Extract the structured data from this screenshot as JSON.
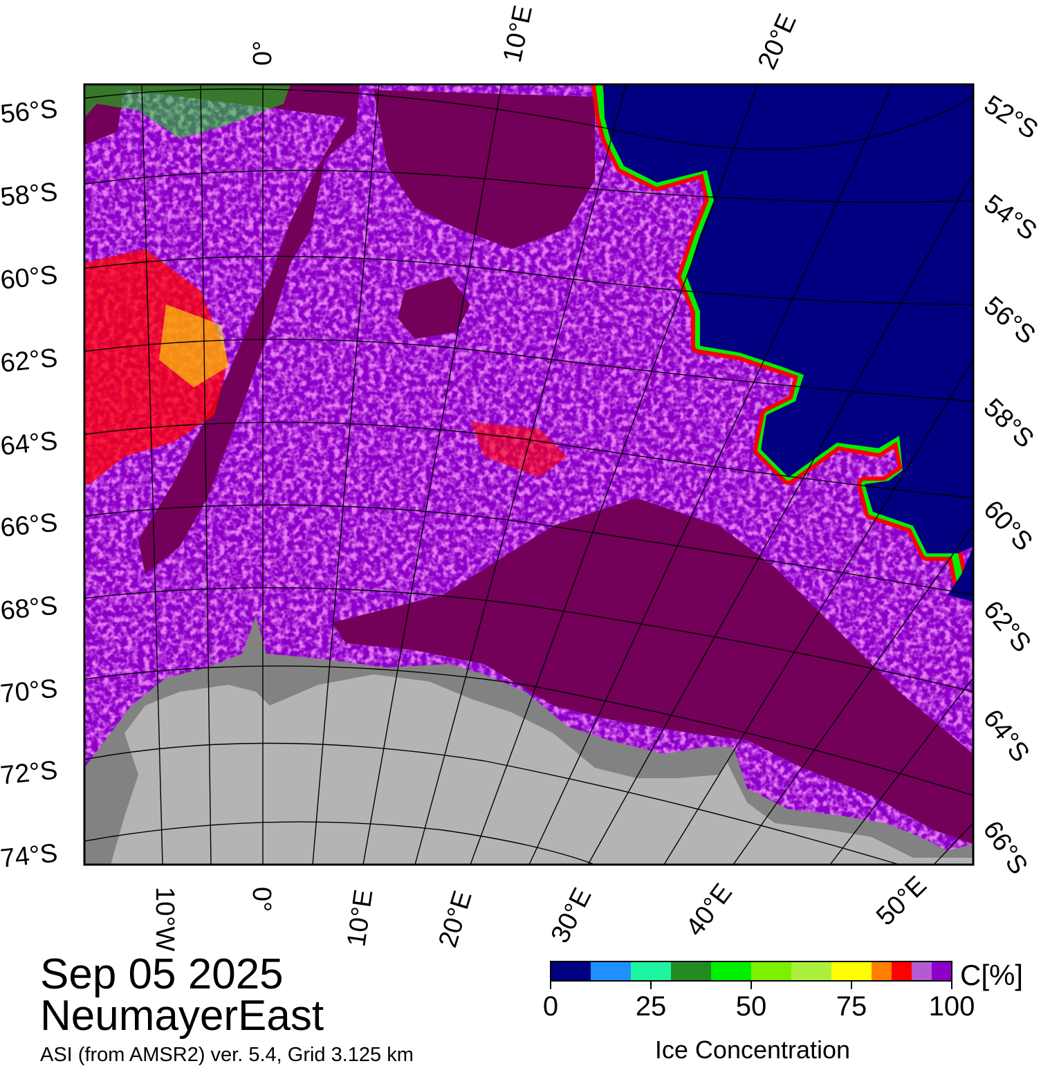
{
  "title": {
    "date": "Sep 05 2025",
    "region": "NeumayerEast",
    "subtitle": "ASI (from AMSR2) ver. 5.4,  Grid 3.125 km"
  },
  "map": {
    "top_lon_labels": [
      "0°",
      "10°E",
      "20°E"
    ],
    "bottom_lon_labels": [
      "10°W",
      "0°",
      "10°E",
      "20°E",
      "30°E",
      "40°E",
      "50°E"
    ],
    "left_lat_labels": [
      "56°S",
      "58°S",
      "60°S",
      "62°S",
      "64°S",
      "66°S",
      "68°S",
      "70°S",
      "72°S",
      "74°S"
    ],
    "right_lat_labels": [
      "52°S",
      "54°S",
      "56°S",
      "58°S",
      "60°S",
      "62°S",
      "64°S",
      "66°S"
    ],
    "colors": {
      "open_water": "#000080",
      "land": "#b4b4b4",
      "ice_shelf": "#828282",
      "ice_100": "#730059",
      "ice_95": "#8c00c8",
      "ice_90": "#b45ad2",
      "ice_85": "#ff0000",
      "ice_75": "#ffff00"
    }
  },
  "colorbar": {
    "title": "Ice Concentration",
    "unit": "C[%]",
    "ticks": [
      "0",
      "25",
      "50",
      "75",
      "100"
    ],
    "colors": [
      "#000080",
      "#1e90ff",
      "#1ef5a0",
      "#228b22",
      "#00f000",
      "#7cf000",
      "#aaf03c",
      "#ffff00",
      "#ff7f00",
      "#ff0000",
      "#b45ad2",
      "#8c00c8"
    ]
  }
}
